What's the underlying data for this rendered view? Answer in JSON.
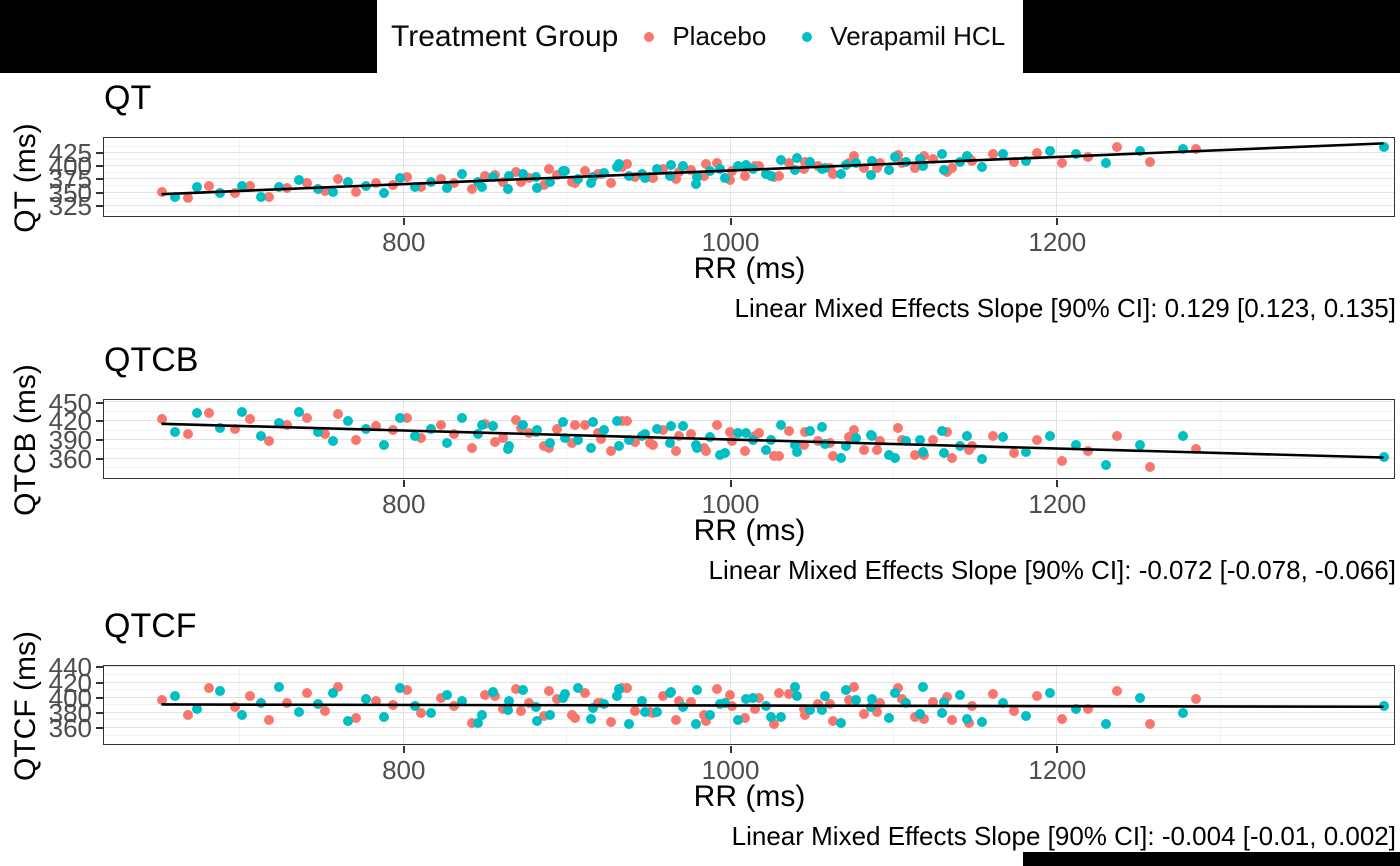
{
  "legend": {
    "title": "Treatment Group"
  },
  "chart_data": {
    "type": "scatter",
    "panel_layout": "3 stacked panels, shared x axis variable",
    "grid": "major and minor gray gridlines on white panel with dark border",
    "x": {
      "label": "RR (ms)",
      "ticks": [
        800,
        1000,
        1200
      ],
      "minor_ticks": [
        700,
        900,
        1100,
        1300
      ],
      "range": [
        616.8,
        1406.4
      ]
    },
    "groups": [
      {
        "id": "placebo",
        "name": "Placebo",
        "color": "#F8766D",
        "rr": [
          652,
          668,
          681,
          697,
          706,
          718,
          729,
          741,
          752,
          760,
          771,
          783,
          794,
          802,
          811,
          823,
          831,
          842,
          850,
          861,
          869,
          877,
          886,
          894,
          903,
          911,
          919,
          927,
          934,
          942,
          951,
          959,
          967,
          976,
          984,
          992,
          1001,
          1009,
          1018,
          1027,
          1036,
          1045,
          1054,
          1063,
          1073,
          1082,
          1092,
          1103,
          1113,
          1124,
          1136,
          1148,
          1161,
          1174,
          1188,
          1203,
          1219,
          1237,
          1257,
          1285,
          856,
          872,
          889,
          905,
          921,
          937,
          953,
          969,
          985,
          1000,
          1015,
          1030,
          1046,
          1061,
          1076,
          1090,
          1105,
          1119,
          1133,
          1146
        ]
      },
      {
        "id": "verapamil-hcl",
        "name": "Verapamil HCL",
        "color": "#00BFC4",
        "rr": [
          660,
          674,
          688,
          701,
          713,
          724,
          736,
          748,
          757,
          766,
          777,
          788,
          798,
          807,
          817,
          827,
          836,
          846,
          855,
          864,
          873,
          881,
          890,
          898,
          907,
          915,
          923,
          931,
          938,
          946,
          955,
          963,
          971,
          980,
          988,
          997,
          1005,
          1014,
          1022,
          1031,
          1040,
          1049,
          1058,
          1068,
          1077,
          1087,
          1097,
          1108,
          1118,
          1130,
          1141,
          1154,
          1167,
          1181,
          1196,
          1212,
          1230,
          1251,
          1277,
          1400,
          848,
          865,
          882,
          899,
          916,
          932,
          948,
          964,
          979,
          994,
          1010,
          1025,
          1041,
          1056,
          1071,
          1086,
          1101,
          1116,
          1131,
          1145
        ]
      }
    ],
    "panels": [
      {
        "title": "QT",
        "ylabel": "QT (ms)",
        "yticks": [
          325,
          350,
          375,
          400,
          425
        ],
        "yrange": [
          304.6,
          452.8
        ],
        "trend": [
          652,
          346.1,
          1400,
          442.6
        ],
        "slope": 0.129,
        "slope_ci_90": [
          0.123,
          0.135
        ],
        "annotation": "Linear Mixed Effects Slope [90% CI]: 0.129 [0.123, 0.135]",
        "values": [
          [
            351,
            339,
            362,
            349,
            361,
            341,
            358,
            368,
            353,
            375,
            350,
            367,
            364,
            378,
            360,
            375,
            367,
            355,
            381,
            369,
            388,
            376,
            364,
            383,
            370,
            390,
            384,
            367,
            398,
            379,
            379,
            394,
            374,
            392,
            380,
            405,
            390,
            381,
            400,
            378,
            406,
            394,
            399,
            385,
            406,
            395,
            406,
            421,
            396,
            412,
            396,
            410,
            423,
            408,
            424,
            405,
            417,
            436,
            407,
            432,
            382,
            369,
            393,
            367,
            385,
            403,
            376,
            389,
            403,
            373,
            400,
            380,
            408,
            396,
            419,
            395,
            405,
            419,
            388,
            415
          ],
          [
            340,
            360,
            349,
            361,
            341,
            360,
            373,
            355,
            350,
            369,
            362,
            349,
            377,
            360,
            370,
            358,
            384,
            370,
            379,
            356,
            385,
            378,
            369,
            391,
            374,
            368,
            387,
            397,
            380,
            385,
            394,
            380,
            400,
            378,
            391,
            377,
            399,
            393,
            385,
            411,
            392,
            408,
            396,
            384,
            406,
            410,
            392,
            408,
            399,
            423,
            408,
            398,
            423,
            409,
            428,
            422,
            406,
            429,
            432,
            436,
            360,
            381,
            358,
            391,
            378,
            403,
            376,
            402,
            365,
            394,
            402,
            380,
            415,
            393,
            402,
            382,
            416,
            412,
            392,
            419
          ]
        ]
      },
      {
        "title": "QTCB",
        "ylabel": "QTCB (ms)",
        "yticks": [
          360,
          390,
          420,
          450
        ],
        "yrange": [
          328.4,
          453.2
        ],
        "trend": [
          652,
          415.1,
          1400,
          361.2
        ],
        "slope": -0.072,
        "slope_ci_90": [
          -0.078,
          -0.066
        ],
        "annotation": "Linear Mixed Effects Slope [90% CI]: -0.072 [-0.078, -0.066]",
        "values": [
          [
            423,
            399,
            433,
            407,
            423,
            388,
            413,
            425,
            399,
            431,
            389,
            412,
            405,
            425,
            392,
            413,
            399,
            376,
            415,
            393,
            421,
            401,
            379,
            407,
            384,
            413,
            401,
            371,
            420,
            386,
            384,
            406,
            371,
            399,
            377,
            414,
            388,
            372,
            400,
            363,
            403,
            382,
            388,
            363,
            394,
            373,
            388,
            408,
            366,
            389,
            360,
            379,
            396,
            369,
            390,
            356,
            371,
            395,
            346,
            375,
            386,
            408,
            376,
            414,
            391,
            419,
            382,
            395,
            372,
            402,
            395,
            364,
            402,
            384,
            405,
            374,
            390,
            365,
            402,
            373
          ],
          [
            402,
            432,
            408,
            434,
            395,
            417,
            434,
            402,
            387,
            420,
            407,
            382,
            424,
            395,
            407,
            385,
            425,
            399,
            411,
            375,
            414,
            402,
            385,
            418,
            390,
            377,
            405,
            419,
            389,
            396,
            407,
            385,
            412,
            376,
            394,
            369,
            401,
            389,
            374,
            413,
            381,
            403,
            383,
            361,
            392,
            396,
            365,
            387,
            370,
            404,
            379,
            359,
            394,
            370,
            395,
            381,
            350,
            382,
            395,
            362,
            414,
            380,
            406,
            393,
            418,
            380,
            399,
            411,
            382,
            365,
            400,
            390,
            370,
            410,
            379,
            398,
            361,
            389,
            369,
            396
          ]
        ]
      },
      {
        "title": "QTCF",
        "ylabel": "QTCF (ms)",
        "yticks": [
          360,
          380,
          400,
          420,
          440
        ],
        "yrange": [
          338.1,
          441.3
        ],
        "trend": [
          652,
          390.4,
          1400,
          387.4
        ],
        "slope": -0.004,
        "slope_ci_90": [
          -0.01,
          0.002
        ],
        "annotation": "Linear Mixed Effects Slope [90% CI]: -0.004 [-0.01, 0.002]",
        "values": [
          [
            396,
            376,
            412,
            387,
            401,
            370,
            392,
            406,
            382,
            414,
            373,
            395,
            390,
            409,
            379,
            399,
            388,
            366,
            403,
            384,
            411,
            393,
            375,
            398,
            377,
            406,
            393,
            367,
            412,
            382,
            380,
            401,
            370,
            394,
            376,
            411,
            388,
            373,
            399,
            365,
            404,
            385,
            391,
            368,
            396,
            378,
            392,
            412,
            374,
            394,
            370,
            388,
            404,
            382,
            401,
            371,
            385,
            408,
            365,
            397,
            401,
            382,
            408,
            373,
            392,
            412,
            379,
            395,
            368,
            403,
            385,
            406,
            376,
            391,
            413,
            380,
            397,
            371,
            400,
            366
          ],
          [
            401,
            385,
            408,
            377,
            393,
            414,
            381,
            391,
            405,
            369,
            398,
            374,
            412,
            388,
            379,
            403,
            395,
            366,
            407,
            383,
            410,
            387,
            376,
            399,
            412,
            371,
            391,
            401,
            364,
            395,
            381,
            405,
            387,
            410,
            377,
            393,
            370,
            399,
            389,
            374,
            413,
            383,
            402,
            366,
            396,
            398,
            372,
            392,
            414,
            379,
            403,
            367,
            393,
            375,
            406,
            384,
            364,
            399,
            379,
            388,
            376,
            395,
            369,
            404,
            386,
            411,
            381,
            407,
            365,
            391,
            398,
            374,
            401,
            383,
            409,
            387,
            405,
            378,
            394,
            371
          ]
        ]
      }
    ]
  }
}
